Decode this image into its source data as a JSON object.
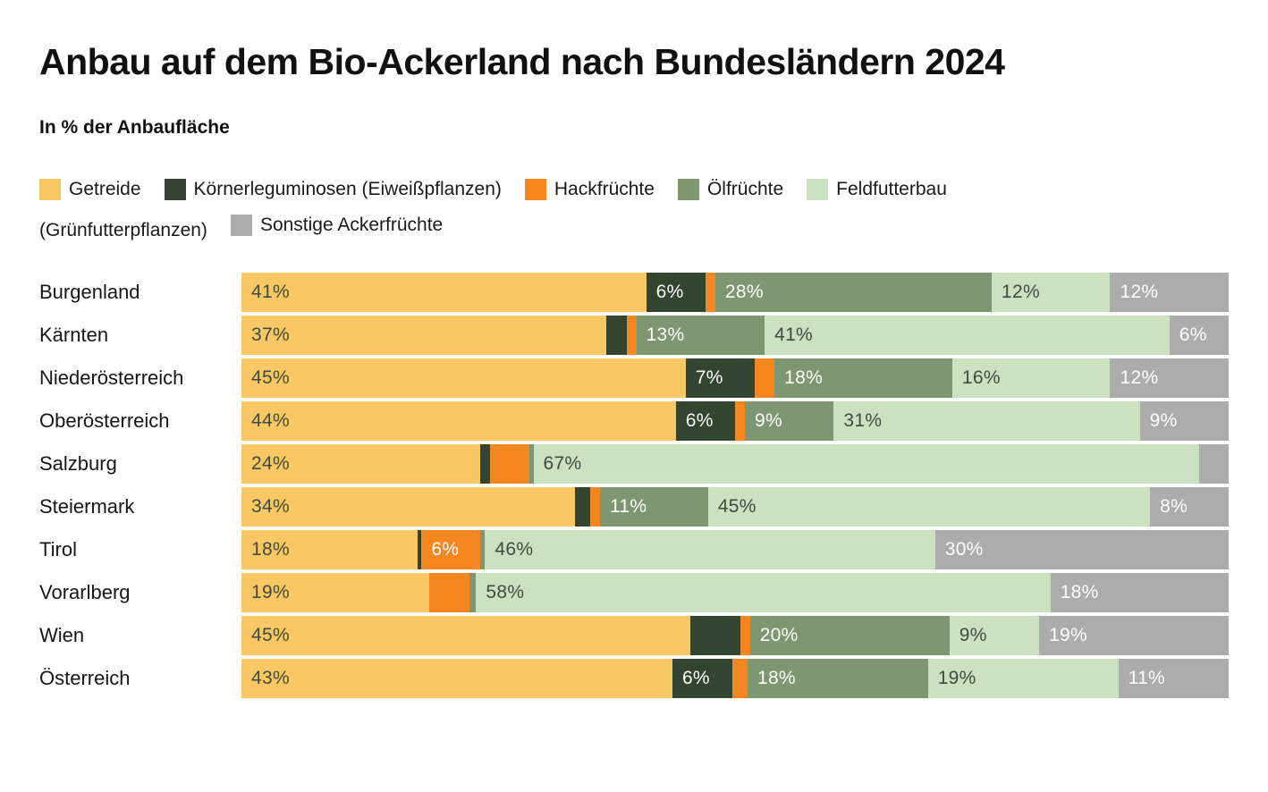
{
  "page": {
    "title": "Anbau auf dem Bio-Ackerland nach Bundesländern 2024",
    "subtitle": "In % der Anbaufläche"
  },
  "colors": {
    "background": "#ffffff",
    "title_text": "#111111",
    "dark_label_text": "#3e4b42",
    "light_label_text": "#ffffff"
  },
  "legend": {
    "rows": [
      [
        {
          "label": "Getreide",
          "swatch_color": "#f9c764"
        },
        {
          "label": "Körnerleguminosen (Eiweißpflanzen)",
          "swatch_color": "#334430"
        },
        {
          "label": "Hackfrüchte",
          "swatch_color": "#f6861f"
        },
        {
          "label": "Ölfrüchte",
          "swatch_color": "#7d9770"
        },
        {
          "label": "Feldfutterbau",
          "swatch_color": "#cbe2c0"
        }
      ],
      [
        {
          "label": "(Grünfutterpflanzen)",
          "swatch_color": null
        },
        {
          "label": "Sonstige Ackerfrüchte",
          "swatch_color": "#acacac"
        }
      ]
    ]
  },
  "chart_data": {
    "type": "bar",
    "stacked": true,
    "orientation": "horizontal",
    "unit": "percent",
    "title": "Anbau auf dem Bio-Ackerland nach Bundesländern 2024",
    "subtitle": "In % der Anbaufläche",
    "xlim": [
      0,
      100
    ],
    "grid": false,
    "legend_position": "top",
    "categories": [
      "Burgenland",
      "Kärnten",
      "Niederösterreich",
      "Oberösterreich",
      "Salzburg",
      "Steiermark",
      "Tirol",
      "Vorarlberg",
      "Wien",
      "Österreich"
    ],
    "series": [
      {
        "name": "Getreide",
        "color": "#f9c764",
        "text_color": "#3e4b42",
        "values": [
          41,
          37,
          45,
          44,
          24,
          34,
          18,
          19,
          45,
          43
        ],
        "labels": [
          "41%",
          "37%",
          "45%",
          "44%",
          "24%",
          "34%",
          "18%",
          "19%",
          "45%",
          "43%"
        ]
      },
      {
        "name": "Körnerleguminosen (Eiweißpflanzen)",
        "color": "#334430",
        "text_color": "#ffffff",
        "values": [
          6,
          2,
          7,
          6,
          1,
          1.5,
          0.4,
          0,
          5,
          6
        ],
        "labels": [
          "6%",
          "",
          "7%",
          "6%",
          "",
          "",
          "",
          "",
          "",
          "6%"
        ]
      },
      {
        "name": "Hackfrüchte",
        "color": "#f6861f",
        "text_color": "#ffffff",
        "values": [
          1,
          1,
          2,
          1,
          4,
          1,
          6,
          4,
          1,
          1.5
        ],
        "labels": [
          "",
          "",
          "",
          "",
          "",
          "",
          "6%",
          "",
          "",
          ""
        ]
      },
      {
        "name": "Ölfrüchte",
        "color": "#7d9770",
        "text_color": "#ffffff",
        "values": [
          28,
          13,
          18,
          9,
          0.4,
          11,
          0.5,
          0.7,
          20,
          18
        ],
        "labels": [
          "28%",
          "13%",
          "18%",
          "9%",
          "",
          "11%",
          "",
          "",
          "20%",
          "18%"
        ]
      },
      {
        "name": "Feldfutterbau (Grünfutterpflanzen)",
        "color": "#cbe2c0",
        "text_color": "#3e4b42",
        "values": [
          12,
          41,
          16,
          31,
          67,
          45,
          46,
          58,
          9,
          19
        ],
        "labels": [
          "12%",
          "41%",
          "16%",
          "31%",
          "67%",
          "45%",
          "46%",
          "58%",
          "9%",
          "19%"
        ]
      },
      {
        "name": "Sonstige Ackerfrüchte",
        "color": "#acacac",
        "text_color": "#ffffff",
        "values": [
          12,
          6,
          12,
          9,
          3,
          8,
          30,
          18,
          19,
          11
        ],
        "labels": [
          "12%",
          "6%",
          "12%",
          "9%",
          "",
          "8%",
          "30%",
          "18%",
          "19%",
          "11%"
        ]
      }
    ]
  }
}
